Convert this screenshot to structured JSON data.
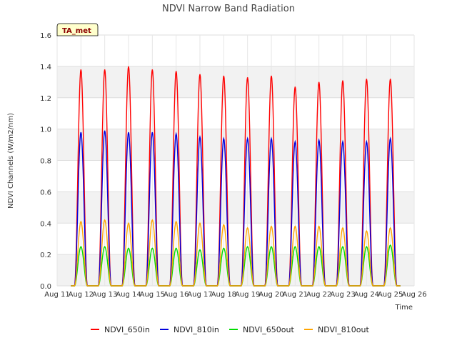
{
  "chart_data": {
    "type": "line",
    "title": "NDVI Narrow Band Radiation",
    "xlabel": "Time",
    "ylabel": "NDVI Channels (W/m2/nm)",
    "ylim": [
      0,
      1.6
    ],
    "yticks": [
      "0.0",
      "0.2",
      "0.4",
      "0.6",
      "0.8",
      "1.0",
      "1.2",
      "1.4",
      "1.6"
    ],
    "xticks": [
      "Aug 11",
      "Aug 12",
      "Aug 13",
      "Aug 14",
      "Aug 15",
      "Aug 16",
      "Aug 17",
      "Aug 18",
      "Aug 19",
      "Aug 20",
      "Aug 21",
      "Aug 22",
      "Aug 23",
      "Aug 24",
      "Aug 25",
      "Aug 26"
    ],
    "xlim_days": [
      11,
      26
    ],
    "grid": true,
    "badge": "TA_met",
    "legend_position": "bottom",
    "peak_days": [
      12,
      13,
      14,
      15,
      16,
      17,
      18,
      19,
      20,
      21,
      22,
      23,
      24,
      25
    ],
    "series": [
      {
        "name": "NDVI_650in",
        "color": "#ff0000",
        "peaks": [
          1.38,
          1.38,
          1.4,
          1.38,
          1.37,
          1.35,
          1.34,
          1.33,
          1.34,
          1.27,
          1.3,
          1.31,
          1.32,
          1.32
        ]
      },
      {
        "name": "NDVI_810in",
        "color": "#0000dd",
        "peaks": [
          0.98,
          0.99,
          0.98,
          0.98,
          0.97,
          0.95,
          0.94,
          0.94,
          0.94,
          0.92,
          0.93,
          0.92,
          0.92,
          0.94
        ]
      },
      {
        "name": "NDVI_650out",
        "color": "#00dd00",
        "peaks": [
          0.25,
          0.25,
          0.24,
          0.24,
          0.24,
          0.23,
          0.24,
          0.25,
          0.25,
          0.25,
          0.25,
          0.25,
          0.25,
          0.26
        ]
      },
      {
        "name": "NDVI_810out",
        "color": "#ffa500",
        "peaks": [
          0.41,
          0.42,
          0.4,
          0.42,
          0.41,
          0.4,
          0.39,
          0.37,
          0.38,
          0.38,
          0.38,
          0.37,
          0.35,
          0.37
        ]
      }
    ]
  }
}
